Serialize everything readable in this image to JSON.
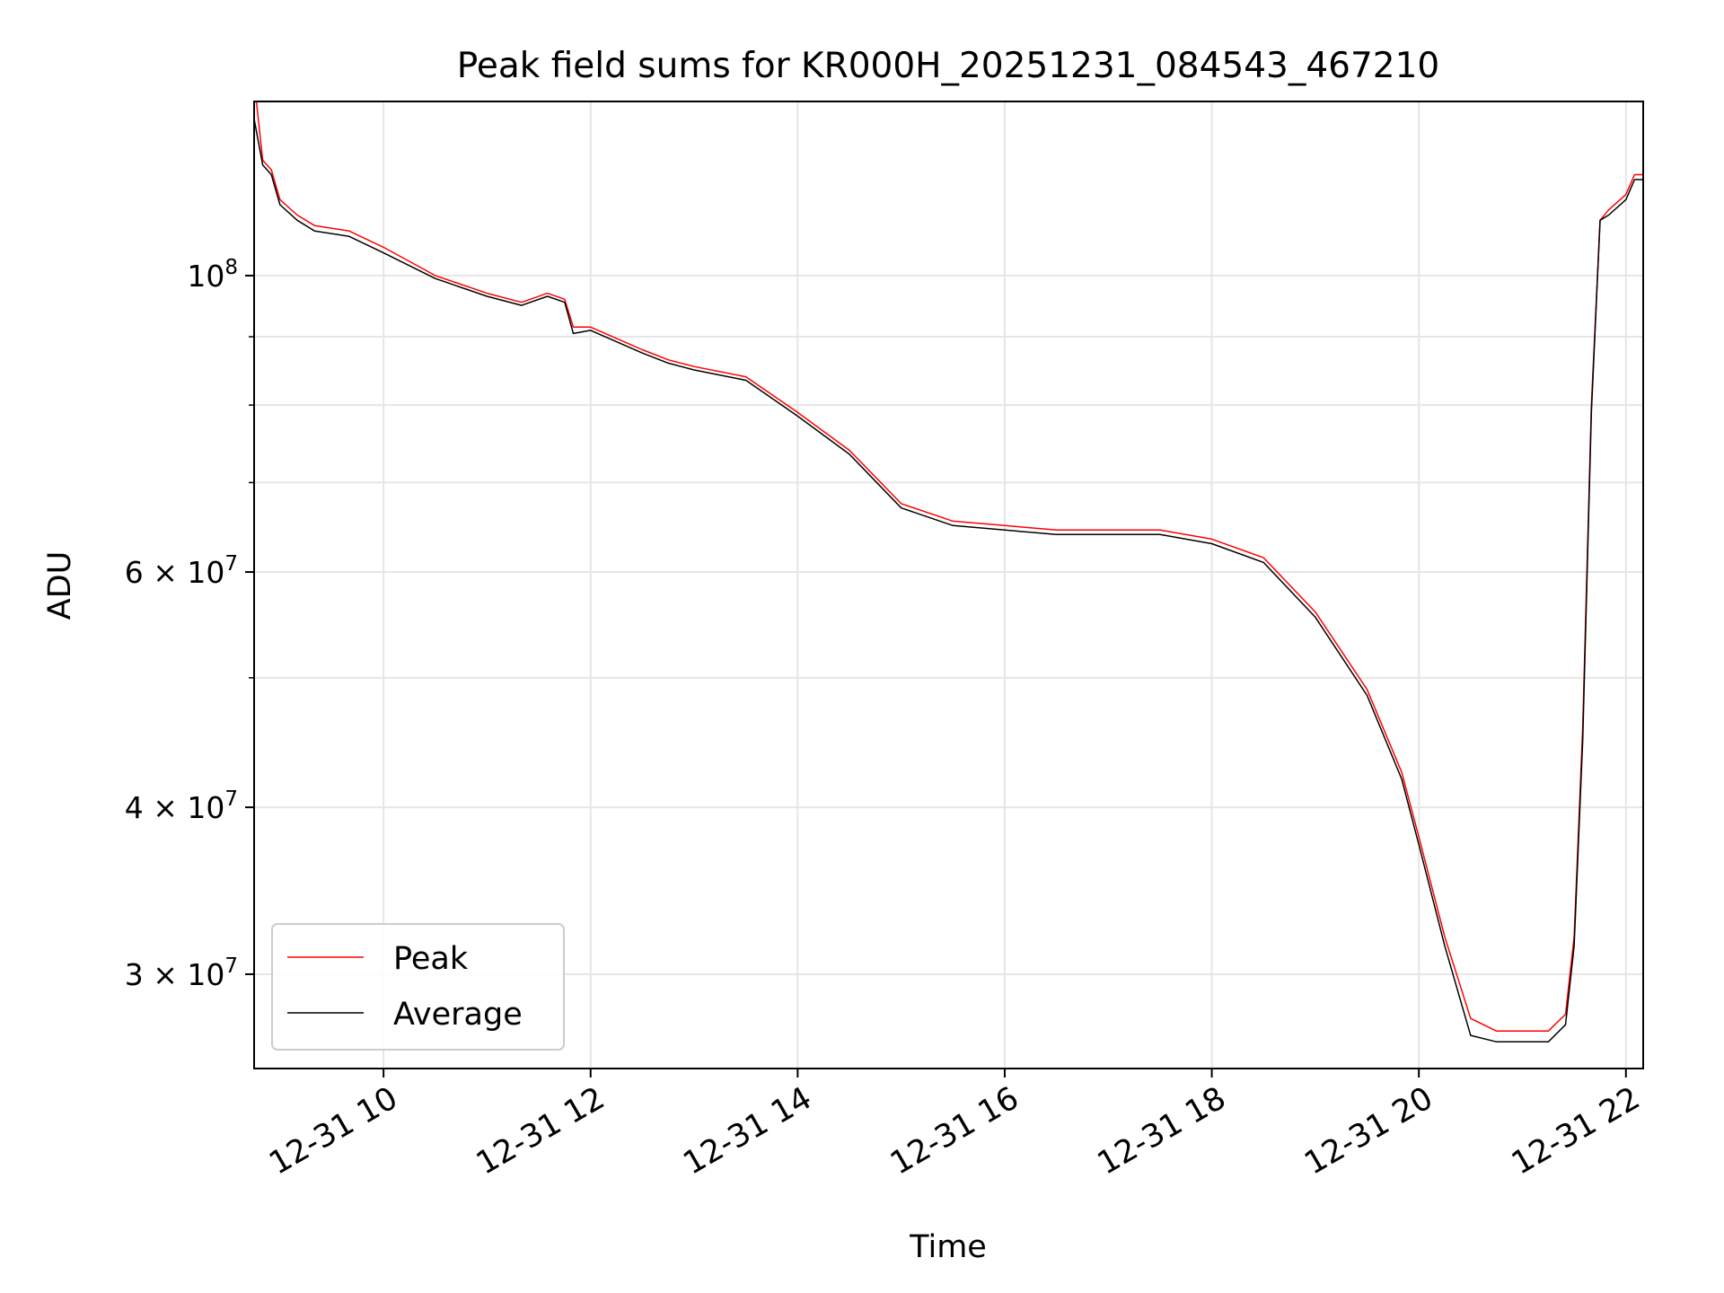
{
  "chart_data": {
    "type": "line",
    "title": "Peak field sums for KR000H_20251231_084543_467210",
    "xlabel": "Time",
    "ylabel": "ADU",
    "xscale": "time",
    "yscale": "log",
    "xlim": [
      "2025-12-31 08:45",
      "2025-12-31 22:10"
    ],
    "ylim": [
      25500000,
      135000000
    ],
    "grid": true,
    "legend_position": "lower-left",
    "x_ticks": [
      "12-31 10",
      "12-31 12",
      "12-31 14",
      "12-31 16",
      "12-31 18",
      "12-31 20",
      "12-31 22"
    ],
    "x_tick_values": [
      "2025-12-31 10:00",
      "2025-12-31 12:00",
      "2025-12-31 14:00",
      "2025-12-31 16:00",
      "2025-12-31 18:00",
      "2025-12-31 20:00",
      "2025-12-31 22:00"
    ],
    "y_ticks": [
      {
        "value": 100000000,
        "mantissa": "",
        "base": "10",
        "exp": "8"
      },
      {
        "value": 60000000,
        "mantissa": "6 × ",
        "base": "10",
        "exp": "7"
      },
      {
        "value": 40000000,
        "mantissa": "4 × ",
        "base": "10",
        "exp": "7"
      },
      {
        "value": 30000000,
        "mantissa": "3 × ",
        "base": "10",
        "exp": "7"
      }
    ],
    "y_minor_ticks": [
      50000000,
      70000000,
      80000000,
      90000000
    ],
    "x": [
      "2025-12-31 08:45",
      "2025-12-31 08:50",
      "2025-12-31 08:55",
      "2025-12-31 09:00",
      "2025-12-31 09:10",
      "2025-12-31 09:20",
      "2025-12-31 09:40",
      "2025-12-31 10:00",
      "2025-12-31 10:30",
      "2025-12-31 11:00",
      "2025-12-31 11:20",
      "2025-12-31 11:35",
      "2025-12-31 11:45",
      "2025-12-31 11:50",
      "2025-12-31 12:00",
      "2025-12-31 12:30",
      "2025-12-31 12:45",
      "2025-12-31 13:00",
      "2025-12-31 13:30",
      "2025-12-31 14:00",
      "2025-12-31 14:30",
      "2025-12-31 15:00",
      "2025-12-31 15:30",
      "2025-12-31 16:00",
      "2025-12-31 16:30",
      "2025-12-31 17:00",
      "2025-12-31 17:30",
      "2025-12-31 18:00",
      "2025-12-31 18:30",
      "2025-12-31 19:00",
      "2025-12-31 19:30",
      "2025-12-31 19:50",
      "2025-12-31 20:00",
      "2025-12-31 20:15",
      "2025-12-31 20:30",
      "2025-12-31 20:45",
      "2025-12-31 21:00",
      "2025-12-31 21:15",
      "2025-12-31 21:25",
      "2025-12-31 21:30",
      "2025-12-31 21:35",
      "2025-12-31 21:40",
      "2025-12-31 21:45",
      "2025-12-31 21:50",
      "2025-12-31 22:00",
      "2025-12-31 22:05",
      "2025-12-31 22:10"
    ],
    "series": [
      {
        "name": "Peak",
        "color": "#ff0000",
        "values": [
          140000000,
          122000000,
          120000000,
          114000000,
          111000000,
          109000000,
          108000000,
          105000000,
          100000000,
          97000000,
          95500000,
          97000000,
          96000000,
          91500000,
          91500000,
          88000000,
          86500000,
          85500000,
          84000000,
          79000000,
          74000000,
          67500000,
          65500000,
          65000000,
          64500000,
          64500000,
          64500000,
          63500000,
          61500000,
          56000000,
          49000000,
          42500000,
          38000000,
          32000000,
          27800000,
          27200000,
          27200000,
          27200000,
          28000000,
          32000000,
          46000000,
          80000000,
          110000000,
          112000000,
          115000000,
          119000000,
          119000000
        ]
      },
      {
        "name": "Average",
        "color": "#000000",
        "values": [
          131000000,
          121000000,
          119000000,
          113000000,
          110000000,
          108000000,
          107000000,
          104000000,
          99500000,
          96500000,
          95000000,
          96500000,
          95500000,
          90500000,
          91000000,
          87500000,
          86000000,
          85000000,
          83500000,
          78500000,
          73500000,
          67000000,
          65000000,
          64500000,
          64000000,
          64000000,
          64000000,
          63000000,
          61000000,
          55500000,
          48500000,
          42000000,
          37500000,
          31500000,
          27000000,
          26700000,
          26700000,
          26700000,
          27500000,
          31500000,
          45000000,
          79000000,
          110000000,
          111000000,
          114000000,
          118000000,
          118000000
        ]
      }
    ]
  }
}
